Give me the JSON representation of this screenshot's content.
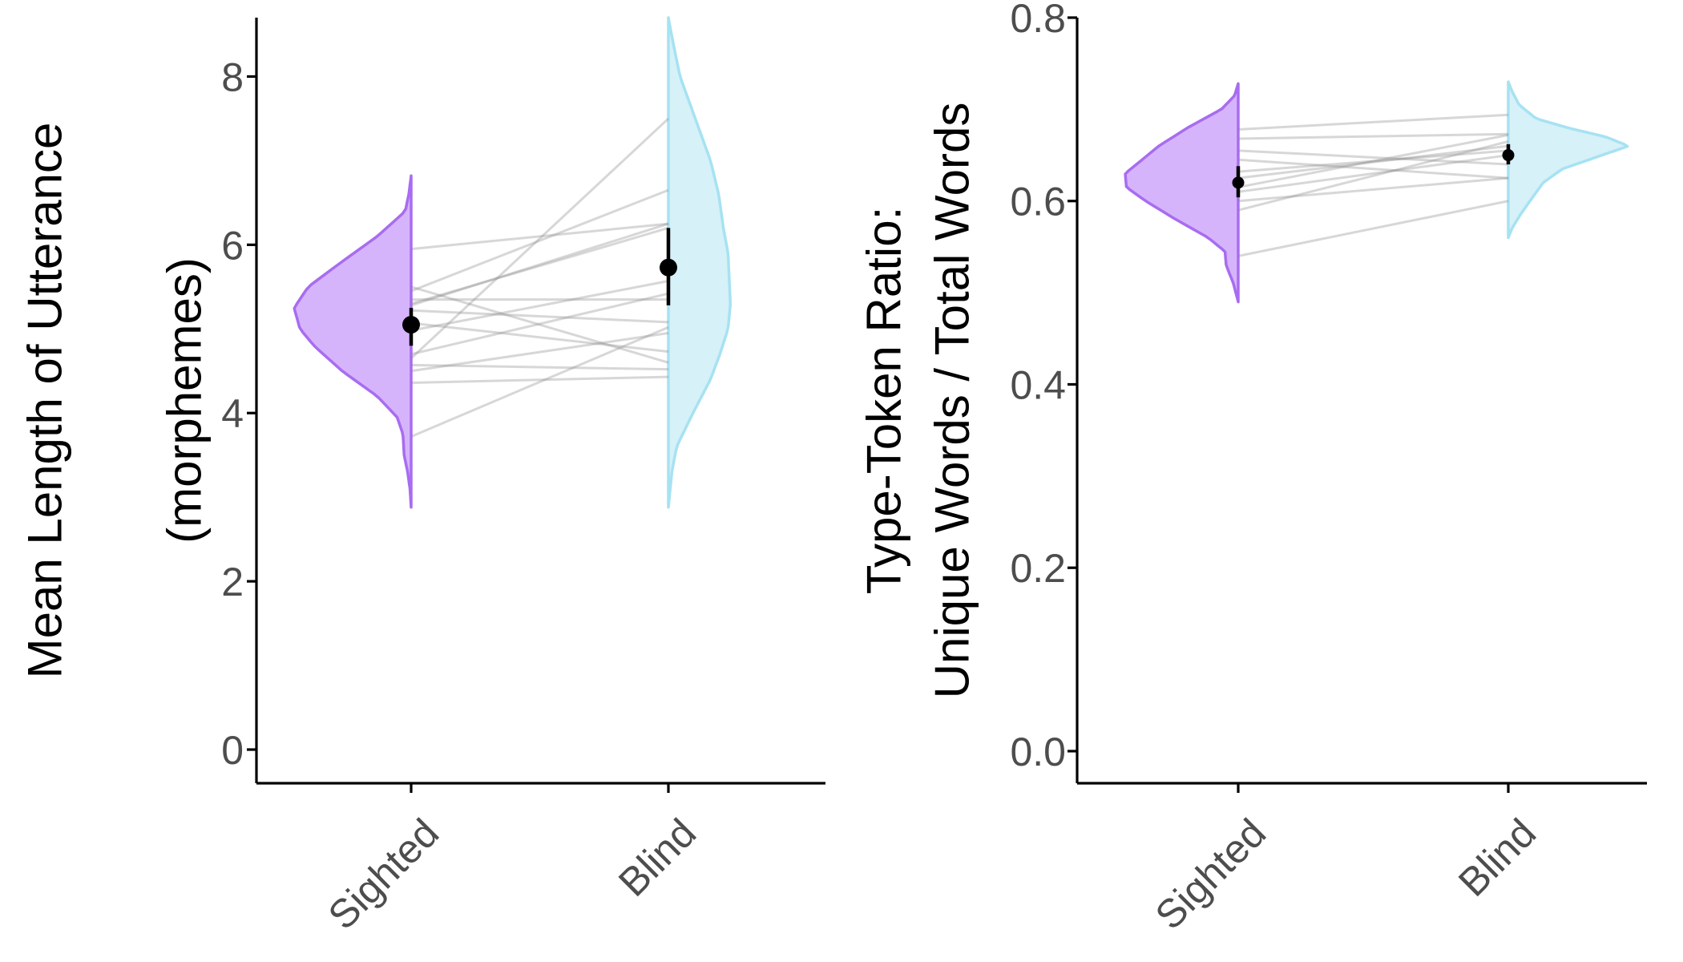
{
  "chart_data": [
    {
      "type": "raincloud",
      "title": "",
      "xlabel": "",
      "ylabel_lines": [
        "Mean Length of Utterance",
        "(morphemes)"
      ],
      "categories": [
        "Sighted",
        "Blind"
      ],
      "ylim": [
        -0.4,
        8.7
      ],
      "yticks": [
        0,
        2,
        4,
        6,
        8
      ],
      "ytick_labels": [
        "0",
        "2",
        "4",
        "6",
        "8"
      ],
      "grid": false,
      "legend": "none",
      "colors": {
        "Sighted": {
          "fill": "#d6b4fc",
          "stroke": "#a86cf0"
        },
        "Blind": {
          "fill": "#d6f1f8",
          "stroke": "#a6e2f2"
        }
      },
      "density": {
        "Sighted": {
          "range": [
            2.88,
            6.82
          ],
          "profile": [
            [
              2.88,
              0.0
            ],
            [
              3.1,
              0.01
            ],
            [
              3.3,
              0.03
            ],
            [
              3.5,
              0.06
            ],
            [
              3.75,
              0.07
            ],
            [
              3.95,
              0.12
            ],
            [
              4.2,
              0.29
            ],
            [
              4.5,
              0.59
            ],
            [
              4.8,
              0.83
            ],
            [
              5.0,
              0.95
            ],
            [
              5.25,
              1.0
            ],
            [
              5.5,
              0.88
            ],
            [
              5.8,
              0.59
            ],
            [
              6.1,
              0.29
            ],
            [
              6.4,
              0.05
            ],
            [
              6.6,
              0.02
            ],
            [
              6.82,
              0.0
            ]
          ]
        },
        "Blind": {
          "range": [
            2.88,
            8.7
          ],
          "profile": [
            [
              2.88,
              0.0
            ],
            [
              3.3,
              0.03
            ],
            [
              3.6,
              0.07
            ],
            [
              4.0,
              0.21
            ],
            [
              4.4,
              0.36
            ],
            [
              4.7,
              0.44
            ],
            [
              5.0,
              0.51
            ],
            [
              5.3,
              0.53
            ],
            [
              5.6,
              0.52
            ],
            [
              5.9,
              0.51
            ],
            [
              6.2,
              0.47
            ],
            [
              6.6,
              0.43
            ],
            [
              7.0,
              0.36
            ],
            [
              7.5,
              0.23
            ],
            [
              8.0,
              0.1
            ],
            [
              8.4,
              0.04
            ],
            [
              8.7,
              0.0
            ]
          ]
        }
      },
      "pairs": [
        [
          3.72,
          5.02
        ],
        [
          4.36,
          4.43
        ],
        [
          4.5,
          4.95
        ],
        [
          4.57,
          4.52
        ],
        [
          4.7,
          5.42
        ],
        [
          4.98,
          5.57
        ],
        [
          5.07,
          4.73
        ],
        [
          5.22,
          5.08
        ],
        [
          5.28,
          6.25
        ],
        [
          5.3,
          6.2
        ],
        [
          5.35,
          5.35
        ],
        [
          5.45,
          6.65
        ],
        [
          5.5,
          4.6
        ],
        [
          5.95,
          6.25
        ],
        [
          4.65,
          7.5
        ]
      ],
      "summary": {
        "Sighted": {
          "mean": 5.05,
          "lo": 4.8,
          "hi": 5.25
        },
        "Blind": {
          "mean": 5.73,
          "lo": 5.28,
          "hi": 6.2
        }
      }
    },
    {
      "type": "raincloud",
      "title": "",
      "xlabel": "",
      "ylabel_lines": [
        "Type-Token Ratio:",
        "Unique Words / Total Words"
      ],
      "categories": [
        "Sighted",
        "Blind"
      ],
      "ylim": [
        -0.035,
        0.8
      ],
      "yticks": [
        0.0,
        0.2,
        0.4,
        0.6,
        0.8
      ],
      "ytick_labels": [
        "0.0",
        "0.2",
        "0.4",
        "0.6",
        "0.8"
      ],
      "grid": false,
      "legend": "none",
      "colors": {
        "Sighted": {
          "fill": "#d6b4fc",
          "stroke": "#a86cf0"
        },
        "Blind": {
          "fill": "#d6f1f8",
          "stroke": "#a6e2f2"
        }
      },
      "density": {
        "Sighted": {
          "range": [
            0.49,
            0.728
          ],
          "profile": [
            [
              0.49,
              0.0
            ],
            [
              0.51,
              0.04
            ],
            [
              0.53,
              0.1
            ],
            [
              0.545,
              0.11
            ],
            [
              0.56,
              0.25
            ],
            [
              0.58,
              0.52
            ],
            [
              0.6,
              0.77
            ],
            [
              0.615,
              0.93
            ],
            [
              0.63,
              0.94
            ],
            [
              0.645,
              0.8
            ],
            [
              0.66,
              0.66
            ],
            [
              0.68,
              0.42
            ],
            [
              0.7,
              0.14
            ],
            [
              0.715,
              0.03
            ],
            [
              0.728,
              0.0
            ]
          ]
        },
        "Blind": {
          "range": [
            0.56,
            0.73
          ],
          "profile": [
            [
              0.56,
              0.0
            ],
            [
              0.57,
              0.03
            ],
            [
              0.585,
              0.1
            ],
            [
              0.6,
              0.18
            ],
            [
              0.62,
              0.29
            ],
            [
              0.635,
              0.45
            ],
            [
              0.65,
              0.78
            ],
            [
              0.66,
              1.0
            ],
            [
              0.67,
              0.81
            ],
            [
              0.68,
              0.49
            ],
            [
              0.69,
              0.23
            ],
            [
              0.705,
              0.09
            ],
            [
              0.72,
              0.03
            ],
            [
              0.73,
              0.0
            ]
          ]
        }
      },
      "pairs": [
        [
          0.54,
          0.6
        ],
        [
          0.59,
          0.665
        ],
        [
          0.6,
          0.625
        ],
        [
          0.61,
          0.65
        ],
        [
          0.615,
          0.672
        ],
        [
          0.625,
          0.66
        ],
        [
          0.632,
          0.655
        ],
        [
          0.645,
          0.625
        ],
        [
          0.655,
          0.64
        ],
        [
          0.668,
          0.673
        ],
        [
          0.678,
          0.694
        ]
      ],
      "summary": {
        "Sighted": {
          "mean": 0.62,
          "lo": 0.604,
          "hi": 0.638
        },
        "Blind": {
          "mean": 0.65,
          "lo": 0.64,
          "hi": 0.662
        }
      }
    }
  ]
}
